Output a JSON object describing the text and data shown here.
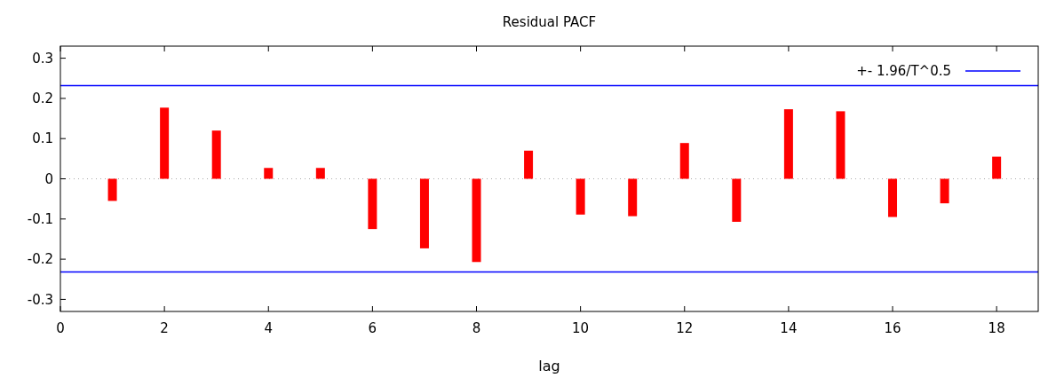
{
  "chart_data": {
    "type": "bar",
    "title": "Residual PACF",
    "xlabel": "lag",
    "x": [
      1,
      2,
      3,
      4,
      5,
      6,
      7,
      8,
      9,
      10,
      11,
      12,
      13,
      14,
      15,
      16,
      17,
      18
    ],
    "values": [
      -0.055,
      0.177,
      0.12,
      0.027,
      0.027,
      -0.125,
      -0.173,
      -0.207,
      0.07,
      -0.089,
      -0.093,
      0.089,
      -0.107,
      0.173,
      0.168,
      -0.095,
      -0.061,
      0.055
    ],
    "color": "#ff0000",
    "xlim": [
      0,
      18.8
    ],
    "xticks": [
      0,
      2,
      4,
      6,
      8,
      10,
      12,
      14,
      16,
      18
    ],
    "ylim": [
      -0.33,
      0.33
    ],
    "yticks": [
      {
        "value": -0.3,
        "label": "-0.3"
      },
      {
        "value": -0.2,
        "label": "-0.2"
      },
      {
        "value": -0.1,
        "label": "-0.1"
      },
      0,
      {
        "value": 0.1,
        "label": "0.1"
      },
      {
        "value": 0.2,
        "label": "0.2"
      },
      {
        "value": 0.3,
        "label": "0.3"
      }
    ],
    "ref_lines": [
      {
        "axis": "y",
        "value": 0,
        "color": "#aaaaaa",
        "line_style": "dotted"
      },
      {
        "axis": "y",
        "value": 0.232,
        "label": "+- 1.96/T^0.5",
        "color": "#0000ff",
        "line_style": "solid"
      },
      {
        "axis": "y",
        "value": -0.232,
        "color": "#0000ff",
        "line_style": "solid"
      }
    ],
    "legend": "top right"
  }
}
